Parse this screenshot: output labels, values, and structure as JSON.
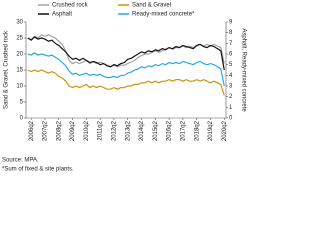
{
  "chart_data": {
    "type": "line",
    "y_label": "Sand & Gravel, Crushed rock",
    "y2_label": "Asphalt, Ready-mixed concrete",
    "source": "Source: MPA.",
    "note": "*Sum of fixed & site plants.",
    "categories": [
      null,
      "2006q2",
      null,
      null,
      null,
      "2007q2",
      null,
      null,
      null,
      "2008q2",
      null,
      null,
      null,
      "2009q2",
      null,
      null,
      null,
      "2010q2",
      null,
      null,
      null,
      "2011q2",
      null,
      null,
      null,
      "2012q2",
      null,
      null,
      null,
      "2013q2",
      null,
      null,
      null,
      "2014q2",
      null,
      null,
      null,
      "2015q2",
      null,
      null,
      null,
      "2016q2",
      null,
      null,
      null,
      "2017q2",
      null,
      null,
      null,
      "2018q2",
      null,
      null,
      null,
      "2019q2",
      null,
      null,
      null,
      "2020q2"
    ],
    "ylim": [
      0,
      30
    ],
    "yticks": [
      0,
      5,
      10,
      15,
      20,
      25,
      30
    ],
    "y2lim": [
      0,
      9
    ],
    "y2ticks": [
      0,
      1,
      2,
      3,
      4,
      5,
      6,
      7,
      8,
      9
    ],
    "series": [
      {
        "name": "Crushed rock",
        "color": "#a3a3a3",
        "axis": "y",
        "values": [
          25,
          24.5,
          25.5,
          25,
          26,
          25.5,
          26,
          25.5,
          25,
          24,
          23,
          21,
          18,
          17,
          17.5,
          17,
          17.5,
          18,
          17,
          17.5,
          17,
          17.5,
          17,
          16.5,
          16,
          16.5,
          16,
          16.5,
          16.5,
          17,
          17.5,
          18,
          19,
          19.5,
          20,
          20,
          20.5,
          21,
          20.5,
          21,
          21.5,
          22,
          21.5,
          22,
          22,
          22.5,
          22,
          22.5,
          22,
          22.5,
          23,
          22.5,
          23,
          22.5,
          23,
          22.5,
          22,
          17
        ]
      },
      {
        "name": "Sand & Gravel",
        "color": "#c9960c",
        "axis": "y",
        "values": [
          15,
          14.5,
          15,
          14.5,
          15,
          14.5,
          14,
          14.5,
          14,
          13,
          12.5,
          11.5,
          10,
          9.5,
          10,
          9.5,
          10,
          10.5,
          9.5,
          10,
          9.5,
          10,
          9.5,
          9,
          9,
          9.5,
          9,
          9.5,
          9.5,
          10,
          10,
          10.5,
          10.5,
          11,
          11,
          11.5,
          11,
          11.5,
          11,
          11.5,
          11.5,
          12,
          11.5,
          12,
          12,
          11.5,
          12,
          11.5,
          11.5,
          12,
          11.5,
          12,
          11.5,
          11,
          11.5,
          11,
          10.5,
          7
        ]
      },
      {
        "name": "Asphalt",
        "color": "#111111",
        "axis": "y2",
        "values": [
          7.5,
          7.3,
          7.6,
          7.4,
          7.5,
          7.4,
          7.2,
          7.3,
          7,
          6.8,
          6.5,
          6.2,
          5.8,
          5.5,
          5.6,
          5.4,
          5.6,
          5.4,
          5.2,
          5.3,
          5.2,
          5,
          5.1,
          4.9,
          4.8,
          5,
          4.9,
          5.1,
          5.2,
          5.5,
          5.6,
          5.8,
          6,
          6.2,
          6.1,
          6.3,
          6.2,
          6.4,
          6.3,
          6.5,
          6.4,
          6.6,
          6.5,
          6.7,
          6.6,
          6.8,
          6.7,
          6.6,
          6.5,
          6.8,
          6.9,
          6.7,
          6.6,
          6.8,
          6.7,
          6.5,
          6.3,
          4.5
        ]
      },
      {
        "name": "Ready-mixed concrete*",
        "color": "#2aa9e0",
        "axis": "y2",
        "values": [
          6,
          5.9,
          6.1,
          5.9,
          6,
          5.9,
          5.8,
          5.9,
          5.7,
          5.5,
          5.2,
          4.9,
          4.4,
          4.1,
          4.2,
          4,
          4.1,
          4.2,
          4,
          4.1,
          4,
          4.1,
          3.9,
          3.8,
          3.8,
          3.9,
          3.8,
          4,
          4,
          4.2,
          4.3,
          4.5,
          4.6,
          4.8,
          4.7,
          4.9,
          4.8,
          5,
          4.9,
          5.1,
          5,
          5.2,
          5.1,
          5.2,
          5.1,
          5.3,
          5.2,
          5.1,
          5,
          5.2,
          5.3,
          5.1,
          5,
          5.1,
          5,
          4.8,
          4.6,
          3
        ]
      }
    ]
  }
}
